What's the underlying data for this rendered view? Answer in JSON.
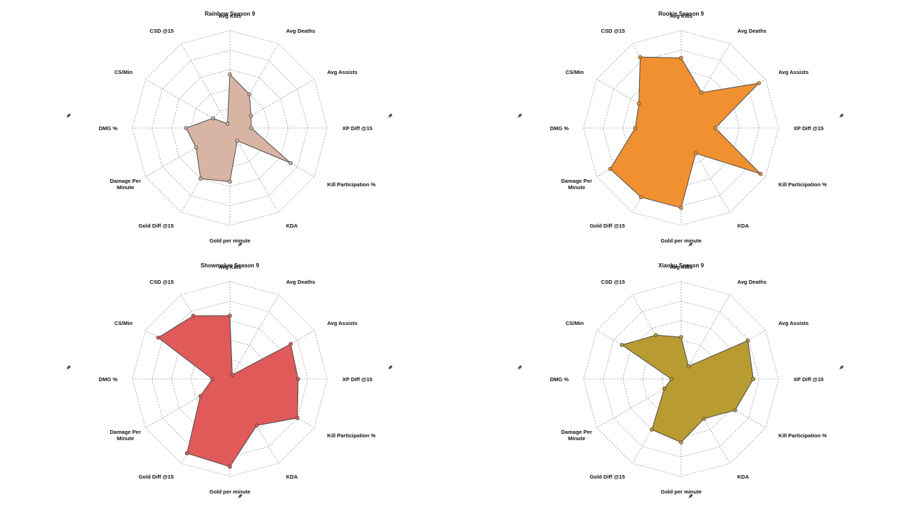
{
  "chart_data": [
    {
      "type": "radar",
      "title": "Rainbow Season 9",
      "axes": [
        "Avg Kills",
        "Avg Deaths",
        "Avg Assists",
        "XP Diff @15",
        "Kill Participation %",
        "KDA",
        "Gold per minute",
        "Gold Diff @15",
        "Damage Per Minute",
        "DMG %",
        "CS/Min",
        "CSD @15"
      ],
      "values": [
        0.55,
        0.4,
        0.25,
        0.22,
        0.72,
        0.15,
        0.55,
        0.6,
        0.4,
        0.45,
        0.2,
        0.05
      ],
      "range": [
        0,
        1
      ],
      "fill_color": "#d8b4a4"
    },
    {
      "type": "radar",
      "title": "Rookie Season 9",
      "axes": [
        "Avg Kills",
        "Avg Deaths",
        "Avg Assists",
        "XP Diff @15",
        "Kill Participation %",
        "KDA",
        "Gold per minute",
        "Gold Diff @15",
        "Damage Per Minute",
        "DMG %",
        "CS/Min",
        "CSD @15"
      ],
      "values": [
        0.72,
        0.42,
        0.92,
        0.35,
        0.94,
        0.3,
        0.82,
        0.82,
        0.84,
        0.47,
        0.5,
        0.84
      ],
      "range": [
        0,
        1
      ],
      "fill_color": "#f09030"
    },
    {
      "type": "radar",
      "title": "Showmaker Season 9",
      "axes": [
        "Avg Kills",
        "Avg Deaths",
        "Avg Assists",
        "XP Diff @15",
        "Kill Participation %",
        "KDA",
        "Gold per minute",
        "Gold Diff @15",
        "Damage Per Minute",
        "DMG %",
        "CS/Min",
        "CSD @15"
      ],
      "values": [
        0.65,
        0.05,
        0.72,
        0.7,
        0.8,
        0.55,
        0.9,
        0.88,
        0.35,
        0.18,
        0.85,
        0.75
      ],
      "range": [
        0,
        1
      ],
      "fill_color": "#e05a5a"
    },
    {
      "type": "radar",
      "title": "Xiaohu Season 9",
      "axes": [
        "Avg Kills",
        "Avg Deaths",
        "Avg Assists",
        "XP Diff @15",
        "Kill Participation %",
        "KDA",
        "Gold per minute",
        "Gold Diff @15",
        "Damage Per Minute",
        "DMG %",
        "CS/Min",
        "CSD @15"
      ],
      "values": [
        0.43,
        0.15,
        0.79,
        0.74,
        0.64,
        0.47,
        0.65,
        0.6,
        0.2,
        0.1,
        0.7,
        0.52
      ],
      "range": [
        0,
        1
      ],
      "fill_color": "#b89c32"
    }
  ]
}
